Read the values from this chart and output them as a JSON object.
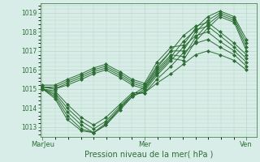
{
  "xlabel": "Pression niveau de la mer( hPa )",
  "bg_color": "#d8ede8",
  "grid_color": "#b8d8c8",
  "line_color": "#2d6e35",
  "ylim": [
    1012.5,
    1019.5
  ],
  "yticks": [
    1013,
    1014,
    1015,
    1016,
    1017,
    1018,
    1019
  ],
  "xtick_labels": [
    "MarJeu",
    "Mer",
    "Ven"
  ],
  "xtick_positions": [
    0.0,
    0.5,
    1.0
  ],
  "series": [
    [
      0.0,
      1015.0,
      0.06,
      1014.9,
      0.12,
      1014.2,
      0.19,
      1013.5,
      0.25,
      1013.1,
      0.31,
      1013.5,
      0.38,
      1014.2,
      0.44,
      1014.8,
      0.5,
      1014.8,
      0.56,
      1015.3,
      0.63,
      1015.8,
      0.69,
      1016.3,
      0.75,
      1016.8,
      0.81,
      1017.0,
      0.87,
      1016.8,
      0.94,
      1016.5,
      1.0,
      1016.0
    ],
    [
      0.0,
      1015.0,
      0.06,
      1014.8,
      0.12,
      1014.0,
      0.19,
      1013.3,
      0.25,
      1012.9,
      0.31,
      1013.3,
      0.38,
      1014.1,
      0.44,
      1014.7,
      0.5,
      1014.8,
      0.56,
      1015.5,
      0.63,
      1016.2,
      0.69,
      1016.9,
      0.75,
      1017.4,
      0.81,
      1017.6,
      0.87,
      1017.2,
      0.94,
      1016.8,
      1.0,
      1016.2
    ],
    [
      0.0,
      1015.0,
      0.06,
      1014.7,
      0.12,
      1013.8,
      0.19,
      1013.1,
      0.25,
      1012.7,
      0.31,
      1013.1,
      0.38,
      1014.0,
      0.44,
      1014.6,
      0.5,
      1014.9,
      0.56,
      1015.7,
      0.63,
      1016.5,
      0.69,
      1017.2,
      0.75,
      1017.8,
      0.81,
      1018.0,
      0.87,
      1017.5,
      0.94,
      1017.0,
      1.0,
      1016.4
    ],
    [
      0.0,
      1015.0,
      0.06,
      1014.6,
      0.12,
      1013.6,
      0.19,
      1012.9,
      0.25,
      1012.7,
      0.31,
      1013.1,
      0.38,
      1013.9,
      0.44,
      1014.6,
      0.5,
      1015.0,
      0.56,
      1015.9,
      0.63,
      1016.7,
      0.69,
      1017.5,
      0.75,
      1018.1,
      0.81,
      1018.3,
      0.87,
      1017.8,
      0.94,
      1017.2,
      1.0,
      1016.6
    ],
    [
      0.0,
      1015.0,
      0.06,
      1014.5,
      0.12,
      1013.4,
      0.19,
      1012.8,
      0.25,
      1012.7,
      0.31,
      1013.2,
      0.38,
      1014.0,
      0.44,
      1014.7,
      0.5,
      1015.1,
      0.56,
      1016.1,
      0.63,
      1017.0,
      0.69,
      1017.8,
      0.75,
      1018.3,
      0.81,
      1018.5,
      0.87,
      1018.0,
      0.94,
      1017.4,
      1.0,
      1016.8
    ],
    [
      0.0,
      1015.1,
      0.06,
      1015.0,
      0.12,
      1015.2,
      0.19,
      1015.5,
      0.25,
      1015.8,
      0.31,
      1016.0,
      0.38,
      1015.6,
      0.44,
      1015.2,
      0.5,
      1015.0,
      0.56,
      1015.8,
      0.63,
      1016.6,
      0.69,
      1016.5,
      0.75,
      1017.5,
      0.81,
      1018.2,
      0.87,
      1018.8,
      0.94,
      1018.5,
      1.0,
      1017.0
    ],
    [
      0.0,
      1015.1,
      0.06,
      1015.0,
      0.12,
      1015.3,
      0.19,
      1015.6,
      0.25,
      1015.9,
      0.31,
      1016.1,
      0.38,
      1015.7,
      0.44,
      1015.3,
      0.5,
      1015.1,
      0.56,
      1016.0,
      0.63,
      1016.8,
      0.69,
      1016.7,
      0.75,
      1017.7,
      0.81,
      1018.4,
      0.87,
      1018.9,
      0.94,
      1018.6,
      1.0,
      1017.2
    ],
    [
      0.0,
      1015.1,
      0.06,
      1015.1,
      0.12,
      1015.4,
      0.19,
      1015.7,
      0.25,
      1016.0,
      0.31,
      1016.2,
      0.38,
      1015.8,
      0.44,
      1015.4,
      0.5,
      1015.2,
      0.56,
      1016.2,
      0.63,
      1017.0,
      0.69,
      1017.0,
      0.75,
      1018.0,
      0.81,
      1018.6,
      0.87,
      1019.0,
      0.94,
      1018.7,
      1.0,
      1017.4
    ],
    [
      0.0,
      1015.2,
      0.06,
      1015.2,
      0.12,
      1015.5,
      0.19,
      1015.8,
      0.25,
      1016.1,
      0.31,
      1016.3,
      0.38,
      1015.9,
      0.44,
      1015.5,
      0.5,
      1015.3,
      0.56,
      1016.4,
      0.63,
      1017.2,
      0.69,
      1017.3,
      0.75,
      1018.2,
      0.81,
      1018.8,
      0.87,
      1019.1,
      0.94,
      1018.8,
      1.0,
      1017.6
    ]
  ]
}
